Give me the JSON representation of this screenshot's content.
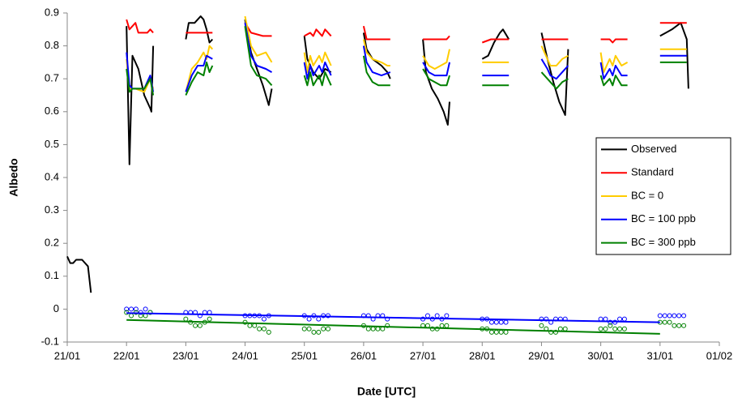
{
  "chart_data": {
    "type": "line",
    "x_label": "Date [UTC]",
    "y_label": "Albedo",
    "xlim": [
      21,
      32
    ],
    "ylim": [
      -0.1,
      0.9
    ],
    "xticks": [
      {
        "value": 21,
        "label": "21/01"
      },
      {
        "value": 22,
        "label": "22/01"
      },
      {
        "value": 23,
        "label": "23/01"
      },
      {
        "value": 24,
        "label": "24/01"
      },
      {
        "value": 25,
        "label": "25/01"
      },
      {
        "value": 26,
        "label": "26/01"
      },
      {
        "value": 27,
        "label": "27/01"
      },
      {
        "value": 28,
        "label": "28/01"
      },
      {
        "value": 29,
        "label": "29/01"
      },
      {
        "value": 30,
        "label": "30/01"
      },
      {
        "value": 31,
        "label": "31/01"
      },
      {
        "value": 32,
        "label": "01/02"
      }
    ],
    "yticks": [
      0.9,
      0.8,
      0.7,
      0.6,
      0.5,
      0.4,
      0.3,
      0.2,
      0.1,
      0,
      -0.1
    ],
    "grid": false,
    "legend": "right",
    "series": [
      {
        "name": "Observed",
        "color": "#000000",
        "x": [
          21,
          21.05,
          21.1,
          21.15,
          21.25,
          21.35,
          21.4,
          null,
          22,
          22.05,
          22.1,
          22.2,
          22.3,
          22.4,
          22.42,
          22.45,
          null,
          23,
          23.05,
          23.15,
          23.25,
          23.3,
          23.35,
          23.4,
          23.45,
          null,
          24,
          24.1,
          24.2,
          24.3,
          24.4,
          24.45,
          null,
          25,
          25.05,
          25.15,
          25.25,
          25.35,
          25.45,
          null,
          26,
          26.05,
          26.15,
          26.3,
          26.4,
          26.45,
          null,
          27,
          27.05,
          27.15,
          27.25,
          27.35,
          27.42,
          27.45,
          null,
          28,
          28.1,
          28.2,
          28.3,
          28.35,
          28.45,
          null,
          29,
          29.1,
          29.2,
          29.3,
          29.4,
          29.45,
          null,
          31,
          31.1,
          31.2,
          31.35,
          31.45,
          31.48
        ],
        "values": [
          0.16,
          0.14,
          0.14,
          0.15,
          0.15,
          0.13,
          0.05,
          null,
          0.86,
          0.44,
          0.77,
          0.73,
          0.65,
          0.61,
          0.6,
          0.8,
          null,
          0.82,
          0.87,
          0.87,
          0.89,
          0.88,
          0.85,
          0.81,
          0.82,
          null,
          0.88,
          0.78,
          0.73,
          0.68,
          0.62,
          0.67,
          null,
          0.83,
          0.76,
          0.72,
          0.7,
          0.73,
          0.72,
          null,
          0.84,
          0.79,
          0.76,
          0.74,
          0.72,
          0.7,
          null,
          0.82,
          0.72,
          0.67,
          0.64,
          0.6,
          0.56,
          0.63,
          null,
          0.76,
          0.77,
          0.81,
          0.84,
          0.85,
          0.82,
          null,
          0.84,
          0.76,
          0.69,
          0.63,
          0.59,
          0.79,
          null,
          0.83,
          0.84,
          0.85,
          0.87,
          0.82,
          0.67
        ]
      },
      {
        "name": "Standard",
        "color": "#ff0000",
        "x": [
          22,
          22.05,
          22.15,
          22.2,
          22.35,
          22.4,
          22.45,
          null,
          23,
          23.45,
          null,
          24,
          24.1,
          24.3,
          24.45,
          null,
          25,
          25.1,
          25.15,
          25.2,
          25.3,
          25.35,
          25.45,
          null,
          26,
          26.05,
          26.45,
          null,
          27,
          27.4,
          27.45,
          null,
          28,
          28.15,
          28.45,
          null,
          29,
          29.45,
          null,
          30,
          30.15,
          30.2,
          30.25,
          30.45,
          null,
          31,
          31.45
        ],
        "values": [
          0.88,
          0.85,
          0.87,
          0.84,
          0.84,
          0.85,
          0.84,
          null,
          0.84,
          0.84,
          null,
          0.87,
          0.84,
          0.83,
          0.83,
          null,
          0.83,
          0.84,
          0.83,
          0.85,
          0.83,
          0.85,
          0.83,
          null,
          0.86,
          0.82,
          0.82,
          null,
          0.82,
          0.82,
          0.83,
          null,
          0.81,
          0.82,
          0.82,
          null,
          0.82,
          0.82,
          null,
          0.82,
          0.82,
          0.81,
          0.82,
          0.82,
          null,
          0.87,
          0.87
        ]
      },
      {
        "name": "BC = 0",
        "color": "#ffcc00",
        "x": [
          22,
          22.05,
          22.15,
          22.3,
          22.4,
          22.45,
          null,
          23,
          23.1,
          23.2,
          23.3,
          23.35,
          23.4,
          23.45,
          null,
          24,
          24.1,
          24.2,
          24.35,
          24.45,
          null,
          25,
          25.05,
          25.1,
          25.15,
          25.25,
          25.3,
          25.35,
          25.45,
          null,
          26,
          26.05,
          26.15,
          26.3,
          26.4,
          26.45,
          null,
          27,
          27.1,
          27.2,
          27.3,
          27.4,
          27.45,
          null,
          28,
          28.45,
          null,
          29,
          29.1,
          29.15,
          29.25,
          29.35,
          29.45,
          null,
          30,
          30.05,
          30.15,
          30.2,
          30.25,
          30.35,
          30.45,
          null,
          31,
          31.45
        ],
        "values": [
          0.76,
          0.67,
          0.67,
          0.66,
          0.7,
          0.67,
          null,
          0.66,
          0.73,
          0.75,
          0.78,
          0.76,
          0.8,
          0.79,
          null,
          0.89,
          0.8,
          0.77,
          0.78,
          0.75,
          null,
          0.78,
          0.72,
          0.77,
          0.74,
          0.77,
          0.75,
          0.78,
          0.74,
          null,
          0.82,
          0.78,
          0.76,
          0.75,
          0.74,
          0.74,
          null,
          0.77,
          0.74,
          0.73,
          0.74,
          0.75,
          0.79,
          null,
          0.75,
          0.75,
          null,
          0.8,
          0.76,
          0.74,
          0.74,
          0.76,
          0.77,
          null,
          0.78,
          0.72,
          0.76,
          0.74,
          0.77,
          0.74,
          0.75,
          null,
          0.79,
          0.79
        ]
      },
      {
        "name": "BC = 100 ppb",
        "color": "#0000ff",
        "x": [
          22,
          22.05,
          22.1,
          22.3,
          22.4,
          22.45,
          null,
          23,
          23.1,
          23.2,
          23.3,
          23.35,
          23.45,
          null,
          24,
          24.1,
          24.2,
          24.35,
          24.45,
          null,
          25,
          25.05,
          25.1,
          25.15,
          25.25,
          25.3,
          25.35,
          25.45,
          null,
          26,
          26.05,
          26.15,
          26.3,
          26.45,
          null,
          27,
          27.1,
          27.2,
          27.4,
          27.45,
          null,
          28,
          28.45,
          null,
          29,
          29.1,
          29.15,
          29.25,
          29.35,
          29.45,
          null,
          30,
          30.05,
          30.15,
          30.2,
          30.25,
          30.35,
          30.45,
          null,
          31,
          31.45
        ],
        "values": [
          0.78,
          0.68,
          0.67,
          0.67,
          0.71,
          0.66,
          null,
          0.66,
          0.71,
          0.74,
          0.74,
          0.77,
          0.76,
          null,
          0.87,
          0.77,
          0.74,
          0.73,
          0.72,
          null,
          0.75,
          0.7,
          0.74,
          0.71,
          0.74,
          0.72,
          0.75,
          0.71,
          null,
          0.8,
          0.75,
          0.72,
          0.71,
          0.72,
          null,
          0.75,
          0.72,
          0.71,
          0.71,
          0.75,
          null,
          0.71,
          0.71,
          null,
          0.76,
          0.73,
          0.71,
          0.7,
          0.72,
          0.74,
          null,
          0.75,
          0.7,
          0.73,
          0.71,
          0.74,
          0.71,
          0.71,
          null,
          0.77,
          0.77
        ]
      },
      {
        "name": "BC = 300 ppb",
        "color": "#008000",
        "x": [
          22,
          22.05,
          22.1,
          22.3,
          22.4,
          22.45,
          null,
          23,
          23.1,
          23.2,
          23.3,
          23.35,
          23.4,
          23.45,
          null,
          24,
          24.1,
          24.2,
          24.35,
          24.45,
          null,
          25,
          25.05,
          25.1,
          25.15,
          25.25,
          25.3,
          25.35,
          25.45,
          null,
          26,
          26.05,
          26.15,
          26.25,
          26.45,
          null,
          27,
          27.1,
          27.2,
          27.3,
          27.4,
          27.45,
          null,
          28,
          28.45,
          null,
          29,
          29.1,
          29.2,
          29.25,
          29.35,
          29.45,
          null,
          30,
          30.05,
          30.15,
          30.2,
          30.25,
          30.35,
          30.45,
          null,
          31,
          31.45
        ],
        "values": [
          0.73,
          0.66,
          0.67,
          0.67,
          0.7,
          0.65,
          null,
          0.65,
          0.69,
          0.72,
          0.71,
          0.75,
          0.72,
          0.74,
          null,
          0.86,
          0.74,
          0.71,
          0.7,
          0.68,
          null,
          0.71,
          0.68,
          0.72,
          0.68,
          0.71,
          0.68,
          0.72,
          0.68,
          null,
          0.77,
          0.72,
          0.69,
          0.68,
          0.68,
          null,
          0.73,
          0.7,
          0.69,
          0.68,
          0.68,
          0.71,
          null,
          0.68,
          0.68,
          null,
          0.72,
          0.7,
          0.68,
          0.67,
          0.69,
          0.7,
          null,
          0.71,
          0.68,
          0.7,
          0.68,
          0.71,
          0.68,
          0.68,
          null,
          0.75,
          0.75
        ]
      }
    ],
    "markers": {
      "x": [
        22,
        22.08,
        22.16,
        22.24,
        22.32,
        22.4,
        23,
        23.08,
        23.16,
        23.24,
        23.32,
        23.4,
        24,
        24.08,
        24.16,
        24.24,
        24.32,
        24.4,
        25,
        25.08,
        25.16,
        25.24,
        25.32,
        25.4,
        26,
        26.08,
        26.16,
        26.24,
        26.32,
        26.4,
        27,
        27.08,
        27.16,
        27.24,
        27.32,
        27.4,
        28,
        28.08,
        28.16,
        28.24,
        28.32,
        28.4,
        29,
        29.08,
        29.16,
        29.24,
        29.32,
        29.4,
        30,
        30.08,
        30.16,
        30.24,
        30.32,
        30.4,
        31,
        31.08,
        31.16,
        31.24,
        31.32,
        31.4
      ],
      "series": [
        {
          "color": "#0000ff",
          "values": [
            0,
            0,
            0,
            -0.01,
            0,
            -0.01,
            -0.01,
            -0.01,
            -0.01,
            -0.02,
            -0.01,
            -0.01,
            -0.02,
            -0.02,
            -0.02,
            -0.02,
            -0.03,
            -0.02,
            -0.02,
            -0.03,
            -0.02,
            -0.03,
            -0.02,
            -0.02,
            -0.02,
            -0.02,
            -0.03,
            -0.02,
            -0.02,
            -0.03,
            -0.03,
            -0.02,
            -0.03,
            -0.02,
            -0.03,
            -0.02,
            -0.03,
            -0.03,
            -0.04,
            -0.04,
            -0.04,
            -0.04,
            -0.03,
            -0.03,
            -0.04,
            -0.03,
            -0.03,
            -0.03,
            -0.03,
            -0.03,
            -0.04,
            -0.04,
            -0.03,
            -0.03,
            -0.02,
            -0.02,
            -0.02,
            -0.02,
            -0.02,
            -0.02
          ]
        },
        {
          "color": "#008000",
          "values": [
            -0.01,
            -0.02,
            -0.01,
            -0.02,
            -0.02,
            -0.01,
            -0.03,
            -0.04,
            -0.05,
            -0.05,
            -0.04,
            -0.03,
            -0.04,
            -0.05,
            -0.05,
            -0.06,
            -0.06,
            -0.07,
            -0.06,
            -0.06,
            -0.07,
            -0.07,
            -0.06,
            -0.06,
            -0.05,
            -0.06,
            -0.06,
            -0.06,
            -0.06,
            -0.05,
            -0.05,
            -0.05,
            -0.06,
            -0.06,
            -0.05,
            -0.05,
            -0.06,
            -0.06,
            -0.07,
            -0.07,
            -0.07,
            -0.07,
            -0.05,
            -0.06,
            -0.07,
            -0.07,
            -0.06,
            -0.06,
            -0.06,
            -0.06,
            -0.05,
            -0.06,
            -0.06,
            -0.06,
            -0.04,
            -0.04,
            -0.04,
            -0.05,
            -0.05,
            -0.05
          ]
        }
      ]
    },
    "trend_lines": {
      "x": [
        22,
        31
      ],
      "series": [
        {
          "color": "#0000ff",
          "values": [
            -0.012,
            -0.04
          ]
        },
        {
          "color": "#008000",
          "values": [
            -0.033,
            -0.075
          ]
        }
      ]
    }
  }
}
